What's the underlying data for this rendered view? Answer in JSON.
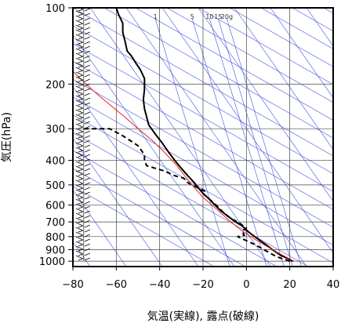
{
  "chart_data": {
    "type": "line",
    "title": "",
    "xlabel": "気温(実線), 露点(破線)",
    "ylabel": "気圧(hPa)",
    "xlim": [
      -80,
      40
    ],
    "ylim": [
      1050,
      100
    ],
    "yscale": "log",
    "grid": true,
    "x_ticks": [
      -80,
      -60,
      -40,
      -20,
      0,
      20,
      40
    ],
    "x_tick_labels": [
      "−80",
      "−60",
      "−40",
      "−20",
      "0",
      "20",
      "40"
    ],
    "y_ticks": [
      100,
      200,
      300,
      400,
      500,
      600,
      700,
      800,
      900,
      1000
    ],
    "y_tick_labels": [
      "100",
      "200",
      "300",
      "400",
      "500",
      "600",
      "700",
      "800",
      "900",
      "1000"
    ],
    "mixing_ratio_labels": [
      {
        "text": "1",
        "x": -42
      },
      {
        "text": "5",
        "x": -25
      },
      {
        "text": "10",
        "x": -17
      },
      {
        "text": "15",
        "x": -13
      },
      {
        "text": "20g",
        "x": -9
      }
    ],
    "series": [
      {
        "style": "solid",
        "color": "#000000",
        "points": [
          [
            21.5,
            1000
          ],
          [
            19,
            975
          ],
          [
            16,
            950
          ],
          [
            12,
            900
          ],
          [
            9,
            860
          ],
          [
            6,
            825
          ],
          [
            3,
            790
          ],
          [
            0.5,
            760
          ],
          [
            -2,
            725
          ],
          [
            -5,
            700
          ],
          [
            -8,
            670
          ],
          [
            -12,
            630
          ],
          [
            -14.5,
            600
          ],
          [
            -17,
            570
          ],
          [
            -20,
            540
          ],
          [
            -22.5,
            510
          ],
          [
            -24,
            490
          ],
          [
            -27,
            460
          ],
          [
            -30,
            430
          ],
          [
            -33,
            400
          ],
          [
            -36,
            370
          ],
          [
            -39,
            340
          ],
          [
            -42,
            315
          ],
          [
            -45,
            290
          ],
          [
            -46,
            270
          ],
          [
            -47,
            250
          ],
          [
            -47.5,
            230
          ],
          [
            -47,
            210
          ],
          [
            -47,
            190
          ],
          [
            -49,
            175
          ],
          [
            -51,
            165
          ],
          [
            -53,
            155
          ],
          [
            -55,
            148
          ],
          [
            -56,
            135
          ],
          [
            -57,
            125
          ],
          [
            -57,
            115
          ],
          [
            -59,
            106
          ],
          [
            -60,
            100
          ]
        ]
      },
      {
        "style": "dashed",
        "color": "#000000",
        "points": [
          [
            20,
            1000
          ],
          [
            16,
            975
          ],
          [
            13,
            950
          ],
          [
            8,
            900
          ],
          [
            4,
            860
          ],
          [
            0,
            830
          ],
          [
            -4,
            800
          ],
          [
            -1,
            790
          ],
          [
            -2,
            760
          ],
          [
            0,
            740
          ],
          [
            -2,
            720
          ],
          [
            -4,
            700
          ],
          [
            -7,
            680
          ],
          [
            -10,
            650
          ],
          [
            -14,
            600
          ],
          [
            -18,
            560
          ],
          [
            -20,
            540
          ],
          [
            -19,
            530
          ],
          [
            -23,
            510
          ],
          [
            -27,
            490
          ],
          [
            -29,
            470
          ],
          [
            -33,
            460
          ],
          [
            -38,
            440
          ],
          [
            -46,
            420
          ],
          [
            -47,
            400
          ],
          [
            -47,
            380
          ],
          [
            -50,
            350
          ],
          [
            -57,
            320
          ],
          [
            -63,
            300
          ],
          [
            -70,
            300
          ],
          [
            -76,
            300
          ]
        ]
      },
      {
        "style": "solid",
        "color": "#ee2222",
        "points": [
          [
            22,
            1000
          ],
          [
            20,
            980
          ],
          [
            16,
            940
          ],
          [
            10,
            880
          ],
          [
            4,
            820
          ],
          [
            -2,
            760
          ],
          [
            -8,
            690
          ],
          [
            -14,
            620
          ],
          [
            -20,
            560
          ],
          [
            -26,
            490
          ],
          [
            -32,
            420
          ],
          [
            -38,
            370
          ],
          [
            -44,
            330
          ],
          [
            -50,
            300
          ],
          [
            -56,
            270
          ],
          [
            -62,
            245
          ],
          [
            -68,
            222
          ],
          [
            -74,
            200
          ],
          [
            -80,
            178
          ]
        ]
      }
    ],
    "wind_barbs": {
      "x": -75,
      "p_from": 1000,
      "p_to": 100
    }
  }
}
